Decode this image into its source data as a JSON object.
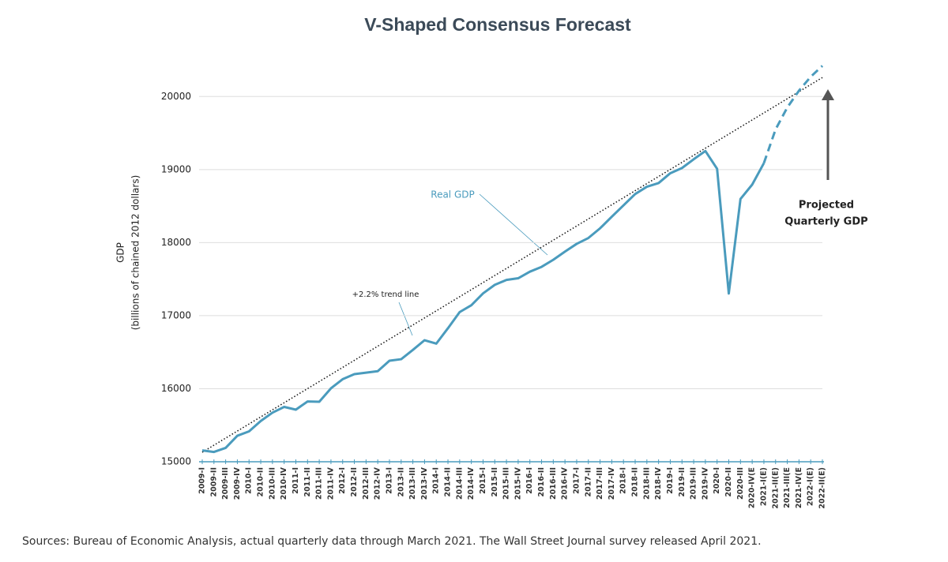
{
  "chart_data": {
    "type": "line",
    "title": "V-Shaped Consensus Forecast",
    "y_label": [
      "GDP",
      "(billions of chained 2012 dollars)"
    ],
    "categories": [
      "2009-I",
      "2009-II",
      "2009-III",
      "2009-IV",
      "2010-I",
      "2010-II",
      "2010-III",
      "2010-IV",
      "2011-I",
      "2011-II",
      "2011-III",
      "2011-IV",
      "2012-I",
      "2012-II",
      "2012-III",
      "2012-IV",
      "2013-I",
      "2013-II",
      "2013-III",
      "2013-IV",
      "2014-I",
      "2014-II",
      "2014-III",
      "2014-IV",
      "2015-I",
      "2015-II",
      "2015-III",
      "2015-IV",
      "2016-I",
      "2016-II",
      "2016-III",
      "2016-IV",
      "2017-I",
      "2017-II",
      "2017-III",
      "2017-IV",
      "2018-I",
      "2018-II",
      "2018-III",
      "2018-IV",
      "2019-I",
      "2019-II",
      "2019-III",
      "2019-IV",
      "2020-I",
      "2020-II",
      "2020-III",
      "2020-IV(E",
      "2021-I(E)",
      "2021-II(E)",
      "2021-III(E",
      "2021-IV(E",
      "2022-I(E)",
      "2022-II(E)"
    ],
    "series": [
      {
        "name": "Real GDP",
        "color": "#4a9bbd",
        "dashed": false,
        "values": [
          15155,
          15134,
          15190,
          15356,
          15416,
          15558,
          15672,
          15751,
          15713,
          15825,
          15821,
          16005,
          16130,
          16199,
          16220,
          16240,
          16383,
          16404,
          16531,
          16664,
          16617,
          16828,
          17049,
          17143,
          17305,
          17422,
          17489,
          17512,
          17602,
          17668,
          17765,
          17877,
          17983,
          18063,
          18196,
          18355,
          18510,
          18665,
          18765,
          18815,
          18950,
          19021,
          19141,
          19254,
          19011,
          17303,
          18597,
          18794,
          19088,
          null,
          null,
          null,
          null,
          null
        ]
      },
      {
        "color": "#4a9bbd",
        "dashed": true,
        "values": [
          null,
          null,
          null,
          null,
          null,
          null,
          null,
          null,
          null,
          null,
          null,
          null,
          null,
          null,
          null,
          null,
          null,
          null,
          null,
          null,
          null,
          null,
          null,
          null,
          null,
          null,
          null,
          null,
          null,
          null,
          null,
          null,
          null,
          null,
          null,
          null,
          null,
          null,
          null,
          null,
          null,
          null,
          null,
          null,
          null,
          null,
          null,
          null,
          19088,
          19550,
          19850,
          20080,
          20270,
          20420
        ]
      }
    ],
    "trend": {
      "label": "+2.2% trend line",
      "color": "#111111",
      "start": 15130,
      "end": 20260
    },
    "annotation": [
      "Projected",
      "Quarterly GDP"
    ],
    "ylim": [
      15000,
      20500
    ],
    "yticks": [
      15000,
      16000,
      17000,
      18000,
      19000,
      20000
    ],
    "grid": true,
    "source": "Sources: Bureau of Economic Analysis, actual quarterly data through March 2021. The Wall Street Journal survey released April 2021."
  }
}
